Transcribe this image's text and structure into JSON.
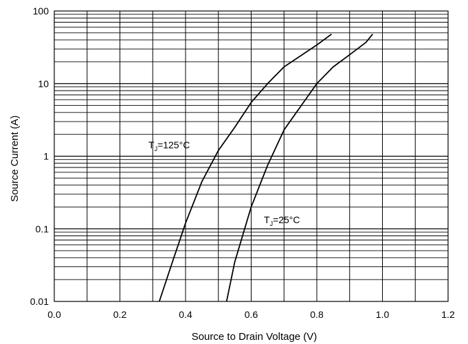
{
  "chart_data": {
    "type": "line",
    "title": "",
    "xlabel": "Source to Drain Voltage (V)",
    "ylabel": "Source Current (A)",
    "xlim": [
      0.0,
      1.2
    ],
    "ylim": [
      0.01,
      100
    ],
    "yscale": "log",
    "grid": true,
    "x_ticks": [
      "0.0",
      "0.2",
      "0.4",
      "0.6",
      "0.8",
      "1.0",
      "1.2"
    ],
    "y_ticks": [
      "0.01",
      "0.1",
      "1",
      "10",
      "100"
    ],
    "series": [
      {
        "label_main": "T",
        "label_sub": "J",
        "label_rest": "=125°C",
        "points": [
          [
            0.32,
            0.01
          ],
          [
            0.36,
            0.035
          ],
          [
            0.4,
            0.12
          ],
          [
            0.45,
            0.45
          ],
          [
            0.5,
            1.2
          ],
          [
            0.55,
            2.5
          ],
          [
            0.6,
            5.5
          ],
          [
            0.65,
            10
          ],
          [
            0.7,
            17
          ],
          [
            0.75,
            24
          ],
          [
            0.8,
            34
          ],
          [
            0.845,
            48
          ]
        ]
      },
      {
        "label_main": "T",
        "label_sub": "J",
        "label_rest": "=25°C",
        "points": [
          [
            0.525,
            0.01
          ],
          [
            0.55,
            0.035
          ],
          [
            0.6,
            0.2
          ],
          [
            0.65,
            0.75
          ],
          [
            0.7,
            2.3
          ],
          [
            0.75,
            4.8
          ],
          [
            0.8,
            10
          ],
          [
            0.85,
            17
          ],
          [
            0.9,
            25
          ],
          [
            0.95,
            37
          ],
          [
            0.97,
            48
          ]
        ]
      }
    ]
  }
}
